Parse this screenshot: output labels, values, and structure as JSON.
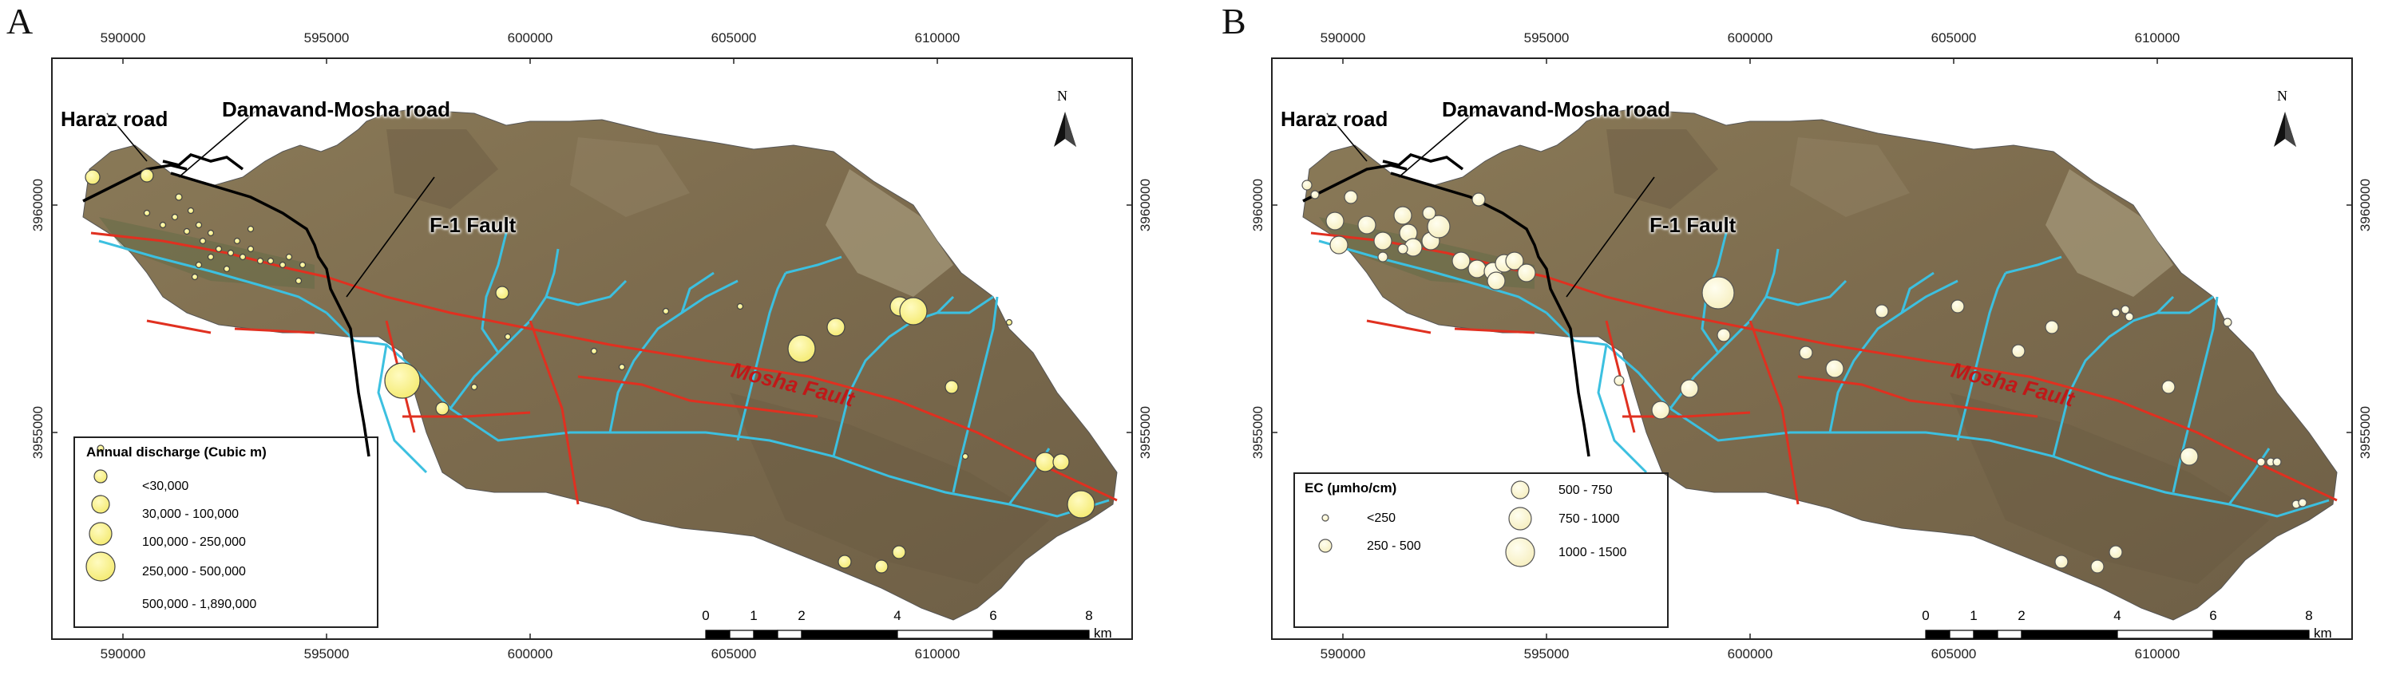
{
  "panels": [
    {
      "letter": "A",
      "x_ticks": [
        "590000",
        "595000",
        "600000",
        "605000",
        "610000"
      ],
      "y_ticks": [
        "3960000",
        "3955000"
      ],
      "labels": {
        "haraz": "Haraz road",
        "damavand": "Damavand-Mosha road",
        "f1": "F-1 Fault",
        "mosha": "Mosha Fault",
        "north": "N"
      },
      "legend": {
        "title": "Annual discharge (Cubic m)",
        "items": [
          "<30,000",
          "30,000 - 100,000",
          "100,000 - 250,000",
          "250,000 - 500,000",
          "500,000 - 1,890,000"
        ]
      },
      "scale": {
        "labels": [
          "0",
          "1",
          "2",
          "4",
          "6",
          "8"
        ],
        "unit": "km"
      }
    },
    {
      "letter": "B",
      "x_ticks": [
        "590000",
        "595000",
        "600000",
        "605000",
        "610000"
      ],
      "y_ticks": [
        "3960000",
        "3955000"
      ],
      "labels": {
        "haraz": "Haraz road",
        "damavand": "Damavand-Mosha road",
        "f1": "F-1 Fault",
        "mosha": "Mosha Fault",
        "north": "N"
      },
      "legend": {
        "title": "EC (μmho/cm)",
        "items": [
          "<250",
          "250 - 500",
          "500 - 750",
          "750 - 1000",
          "1000 - 1500"
        ]
      },
      "scale": {
        "labels": [
          "0",
          "1",
          "2",
          "4",
          "6",
          "8"
        ],
        "unit": "km"
      }
    }
  ],
  "colors": {
    "basin": "#8a7a5a",
    "river": "#3cc0e0",
    "fault": "#e03020",
    "road": "#000000",
    "discharge_marker": "#f6ef86",
    "ec_marker": "#faf3c8"
  }
}
